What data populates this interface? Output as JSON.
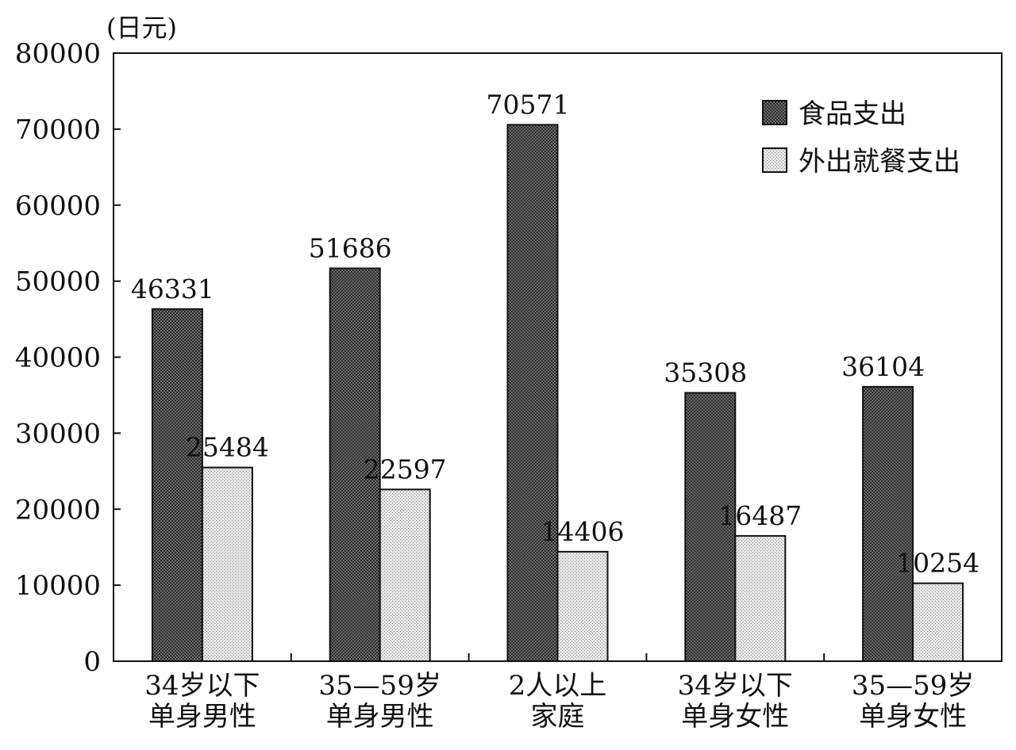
{
  "chart_data": {
    "type": "bar",
    "title": "",
    "xlabel": "",
    "ylabel": "",
    "unit": "(日元)",
    "ylim": [
      0,
      80000
    ],
    "yticks": [
      0,
      10000,
      20000,
      30000,
      40000,
      50000,
      60000,
      70000,
      80000
    ],
    "categories": [
      [
        "34岁以下",
        "单身男性"
      ],
      [
        "35—59岁",
        "单身男性"
      ],
      [
        "2人以上",
        "家庭"
      ],
      [
        "34岁以下",
        "单身女性"
      ],
      [
        "35—59岁",
        "单身女性"
      ]
    ],
    "series": [
      {
        "name": "食品支出",
        "values": [
          46331,
          51686,
          70571,
          35308,
          36104
        ],
        "color": "#5a5a5a",
        "pattern": "dark-crosshatch"
      },
      {
        "name": "外出就餐支出",
        "values": [
          25484,
          22597,
          14406,
          16487,
          10254
        ],
        "color": "#dcdcdc",
        "pattern": "light-dots"
      }
    ],
    "legend": "top-right",
    "grid": false
  }
}
